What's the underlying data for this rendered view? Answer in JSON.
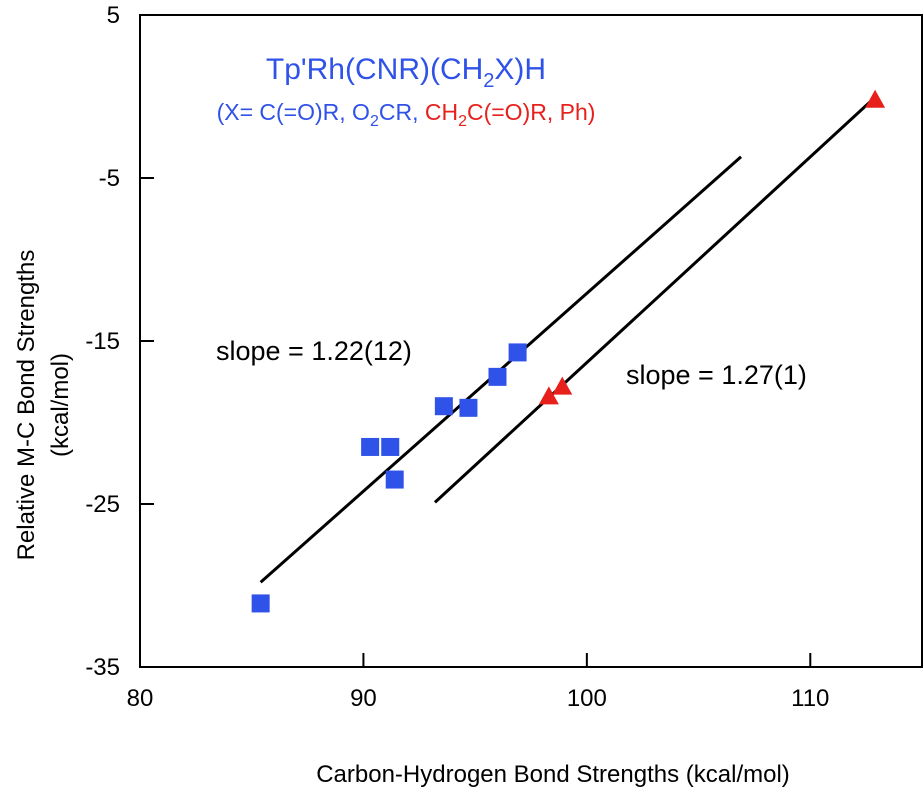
{
  "chart_data": {
    "type": "scatter",
    "title": {
      "main_prefix": "Tp'Rh(CNR)(CH",
      "main_sub": "2",
      "main_suffix": "X)H",
      "sub_part1": "(X= C(=O)R, O",
      "sub_part1_sub": "2",
      "sub_part2": "CR, ",
      "sub_part3": "CH",
      "sub_part3_sub": "2",
      "sub_part4": "C(=O)R, Ph)"
    },
    "xlabel": "Carbon-Hydrogen Bond Strengths (kcal/mol)",
    "ylabel_line1": "Relative M-C Bond Strengths",
    "ylabel_line2": "(kcal/mol)",
    "xlim": [
      80,
      115
    ],
    "ylim": [
      -35,
      5
    ],
    "x_ticks": [
      80,
      90,
      100,
      110
    ],
    "y_ticks": [
      5,
      -5,
      -15,
      -25,
      -35
    ],
    "grid": false,
    "colors": {
      "blue": "#2f52e8",
      "red": "#e8201c",
      "line": "#000000"
    },
    "series": [
      {
        "marker": "square",
        "color": "#2f52e8",
        "points": [
          {
            "x": 85.4,
            "y": -31.1
          },
          {
            "x": 90.3,
            "y": -21.5
          },
          {
            "x": 91.2,
            "y": -21.5
          },
          {
            "x": 91.4,
            "y": -23.5
          },
          {
            "x": 93.6,
            "y": -19.0
          },
          {
            "x": 94.7,
            "y": -19.1
          },
          {
            "x": 96.0,
            "y": -17.2
          },
          {
            "x": 96.9,
            "y": -15.7
          }
        ],
        "fit_line": {
          "x": [
            85.4,
            106.9
          ],
          "y": [
            -29.8,
            -3.7
          ]
        },
        "slope_label": "slope = 1.22(12)"
      },
      {
        "marker": "triangle",
        "color": "#e8201c",
        "points": [
          {
            "x": 98.3,
            "y": -18.4
          },
          {
            "x": 98.9,
            "y": -17.8
          },
          {
            "x": 112.9,
            "y": -0.2
          }
        ],
        "fit_line": {
          "x": [
            93.2,
            112.7
          ],
          "y": [
            -24.9,
            -0.3
          ]
        },
        "slope_label": "slope = 1.27(1)"
      }
    ]
  }
}
